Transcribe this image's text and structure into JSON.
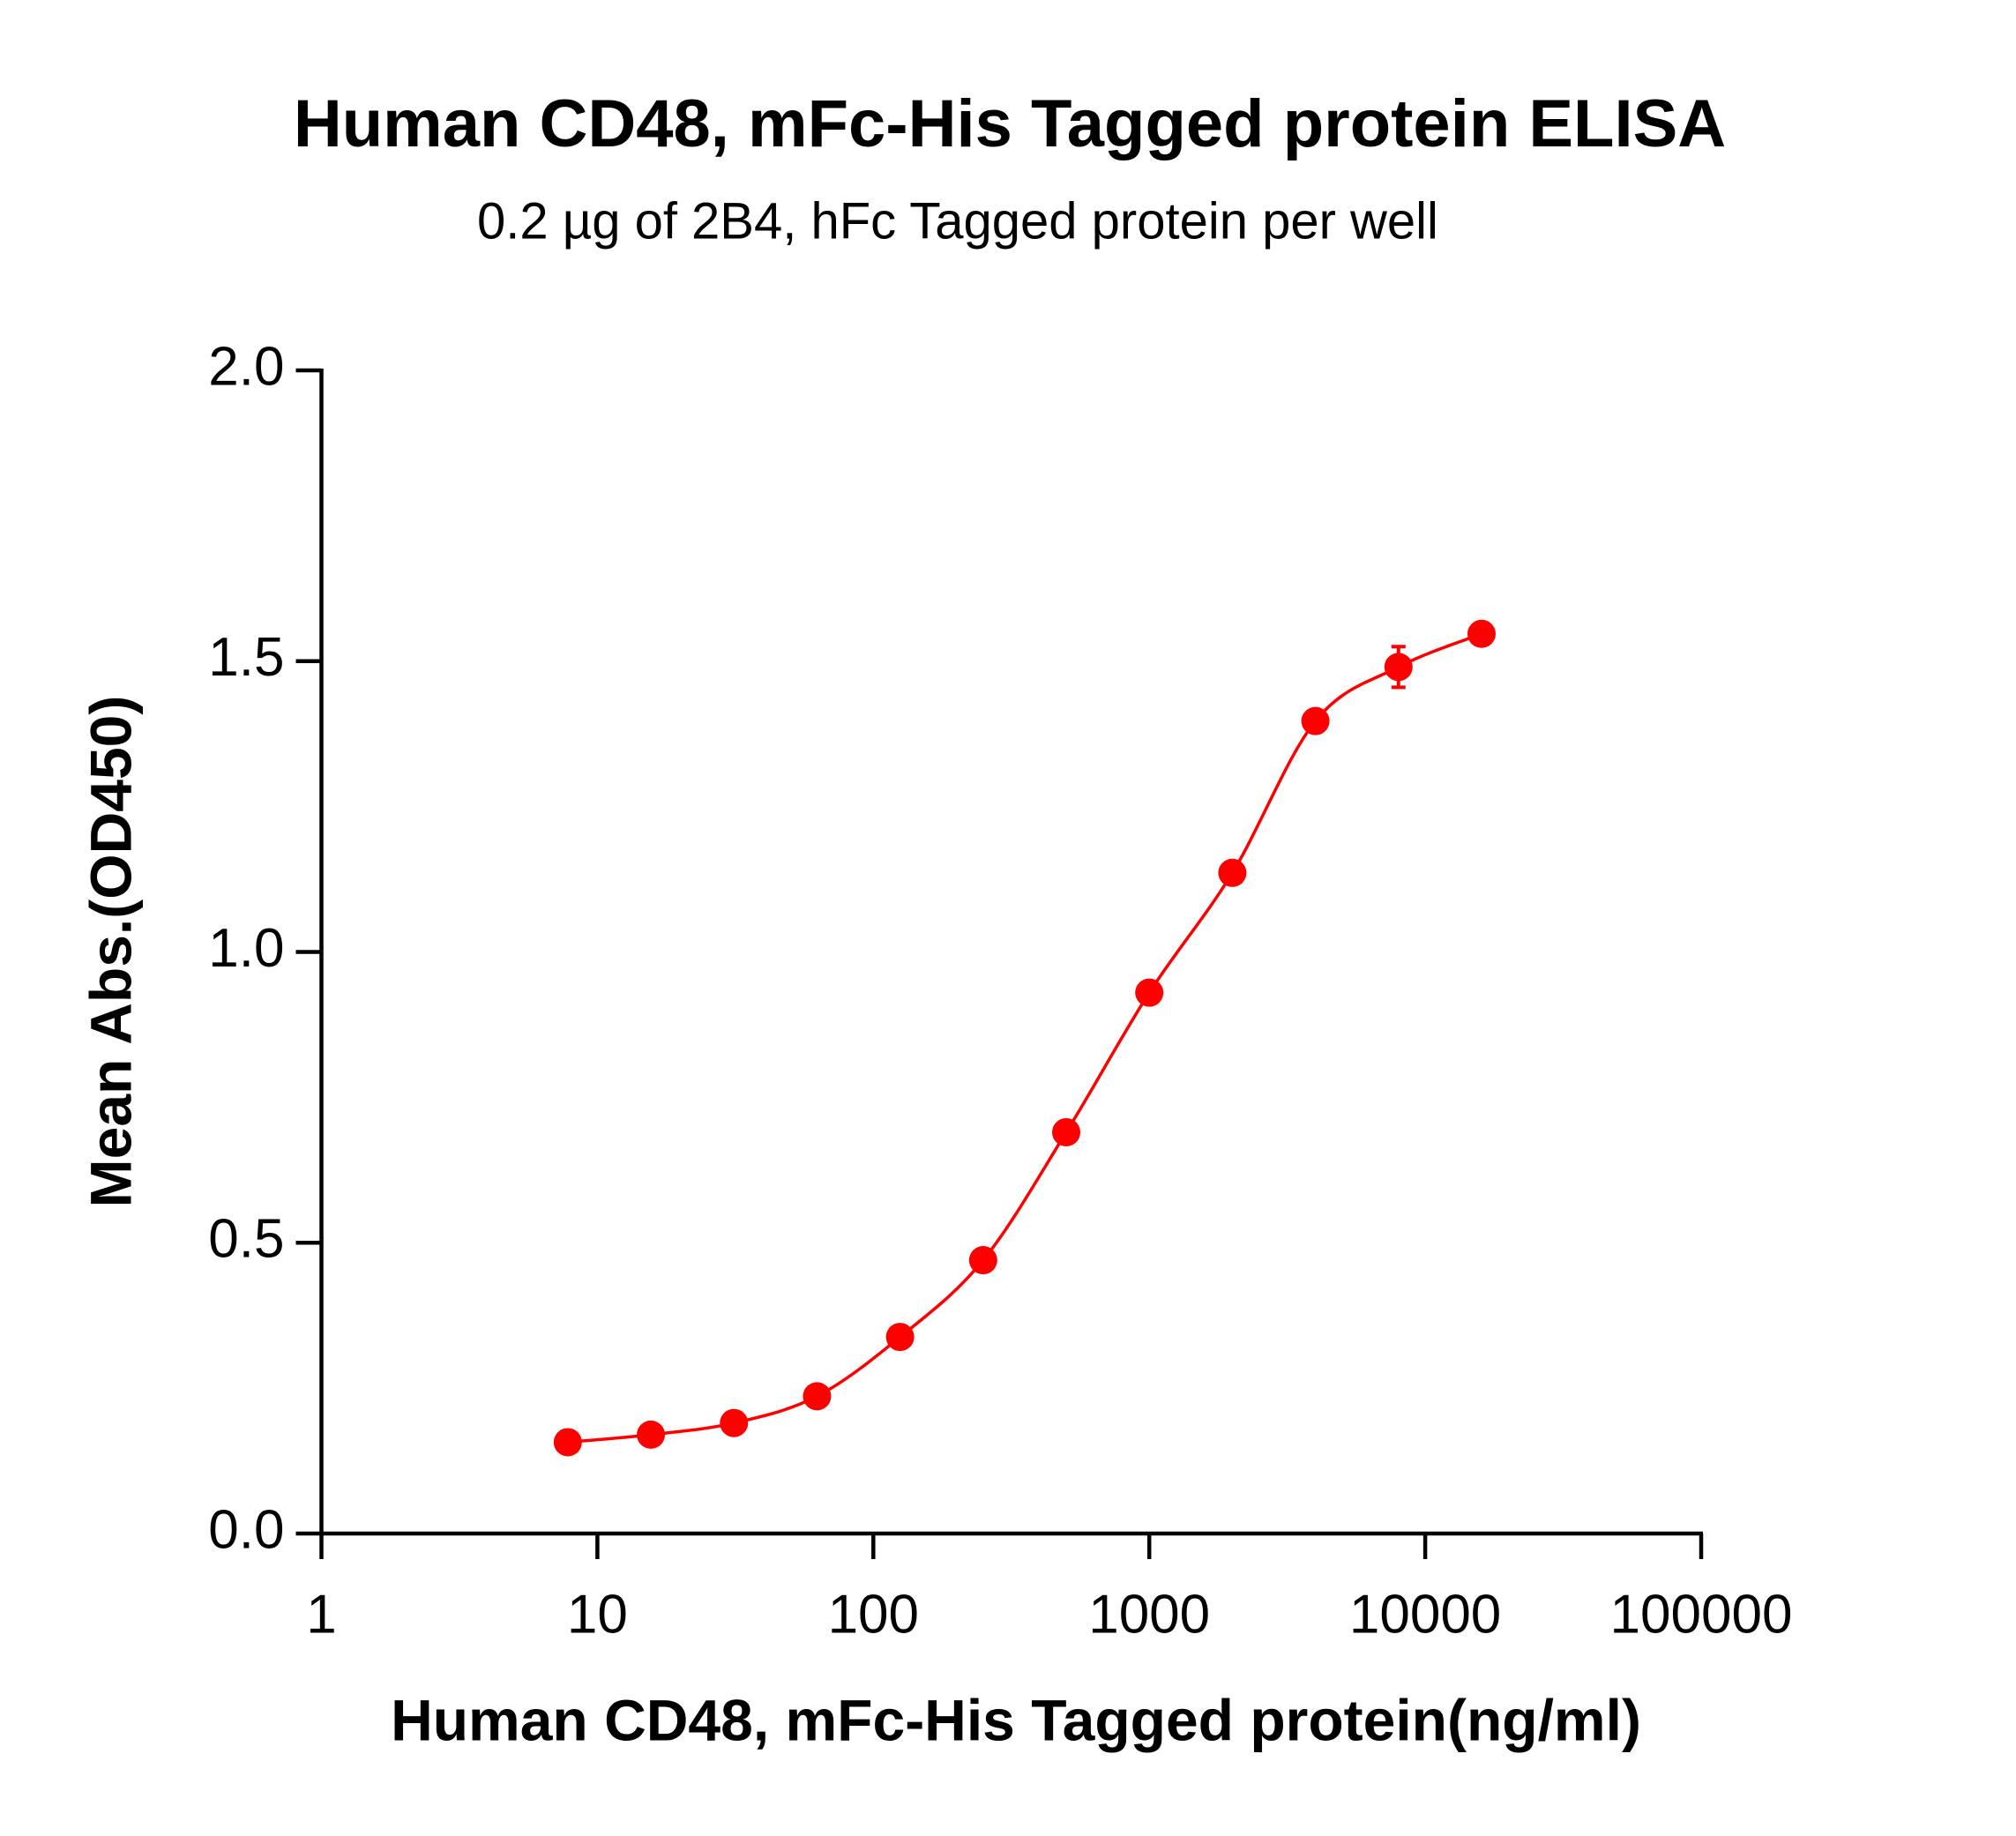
{
  "chart_data": {
    "type": "scatter",
    "title": "Human CD48, mFc-His Tagged protein ELISA",
    "subtitle": "0.2 µg of 2B4, hFc Tagged protein per well",
    "x_label": "Human CD48, mFc-His Tagged protein(ng/ml)",
    "y_label": "Mean Abs.(OD450)",
    "xscale": "log",
    "xlim": [
      1,
      100000
    ],
    "xticks": [
      1,
      10,
      100,
      1000,
      10000,
      100000
    ],
    "ylim": [
      0,
      2
    ],
    "yticks": [
      {
        "value": 0,
        "label": "0.0"
      },
      0.5,
      {
        "value": 1,
        "label": "1.0"
      },
      1.5,
      {
        "value": 2,
        "label": "2.0"
      }
    ],
    "grid": false,
    "series": [
      {
        "color": "#ff0000",
        "x": [
          7.8125,
          15.625,
          31.25,
          62.5,
          125,
          250,
          500,
          1000,
          2000,
          4000,
          8000,
          16000
        ],
        "values": [
          0.157,
          0.17,
          0.19,
          0.236,
          0.338,
          0.47,
          0.69,
          0.93,
          1.136,
          1.397,
          1.49,
          1.547
        ],
        "errors": [
          null,
          null,
          null,
          null,
          null,
          null,
          null,
          null,
          null,
          null,
          0.035,
          null
        ]
      }
    ]
  }
}
